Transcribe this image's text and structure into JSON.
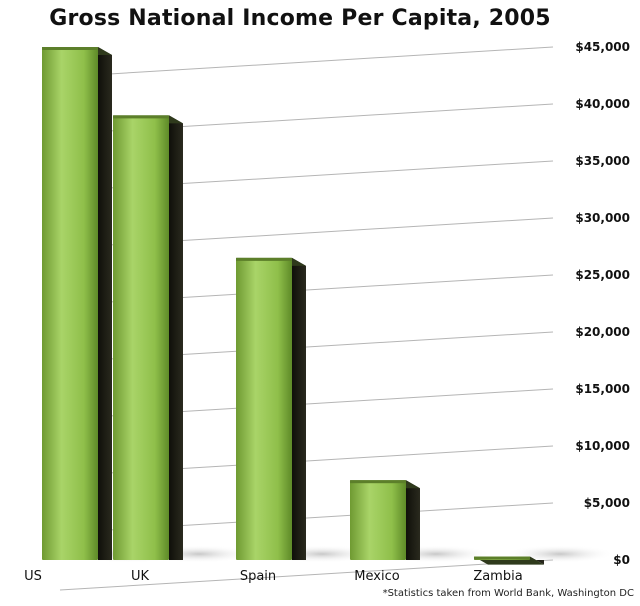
{
  "chart_data": {
    "type": "bar",
    "title": "Gross National Income Per Capita, 2005",
    "categories": [
      "US",
      "UK",
      "Spain",
      "Mexico",
      "Zambia"
    ],
    "values": [
      45000,
      39000,
      26500,
      7000,
      300
    ],
    "ylim": [
      0,
      45000
    ],
    "yticks": [
      "$0",
      "$5,000",
      "$10,000",
      "$15,000",
      "$20,000",
      "$25,000",
      "$30,000",
      "$35,000",
      "$40,000",
      "$45,000"
    ],
    "ytick_values": [
      0,
      5000,
      10000,
      15000,
      20000,
      25000,
      30000,
      35000,
      40000,
      45000
    ],
    "xlabel": "",
    "ylabel": "",
    "grid": true,
    "source_note": "*Statistics taken from World Bank, Washington DC",
    "colors": {
      "bar_face": "#8fbf4a",
      "bar_side": "#1a1a12",
      "grid": "#b5b5b5"
    }
  }
}
